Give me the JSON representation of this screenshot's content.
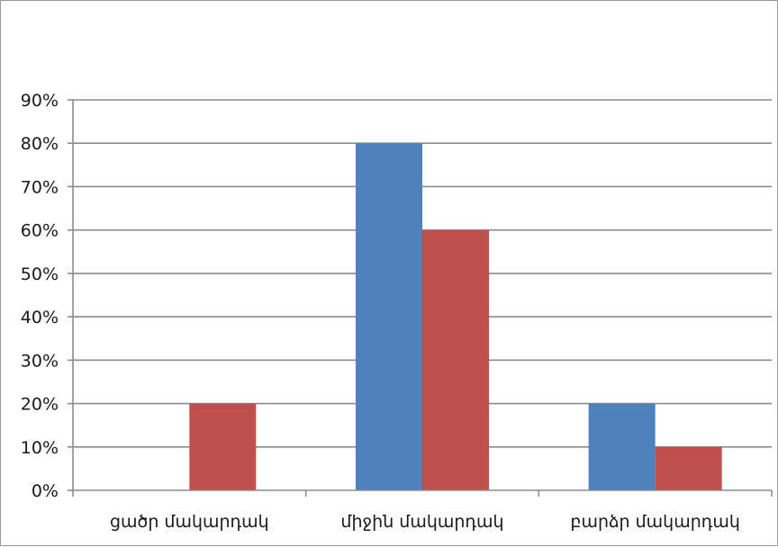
{
  "chart_data": {
    "type": "bar",
    "categories": [
      "ցածր մակարդակ",
      "միջին մակարդակ",
      "բարձր մակարդակ"
    ],
    "series": [
      {
        "values": [
          0,
          80,
          20
        ],
        "color": "#4f81bd"
      },
      {
        "values": [
          20,
          60,
          10
        ],
        "color": "#c0504d"
      }
    ],
    "y_ticks": [
      "0%",
      "10%",
      "20%",
      "30%",
      "40%",
      "50%",
      "60%",
      "70%",
      "80%",
      "90%"
    ],
    "ylim": [
      0,
      90
    ],
    "title": "",
    "xlabel": "",
    "ylabel": "",
    "grid": true,
    "legend": "none"
  }
}
